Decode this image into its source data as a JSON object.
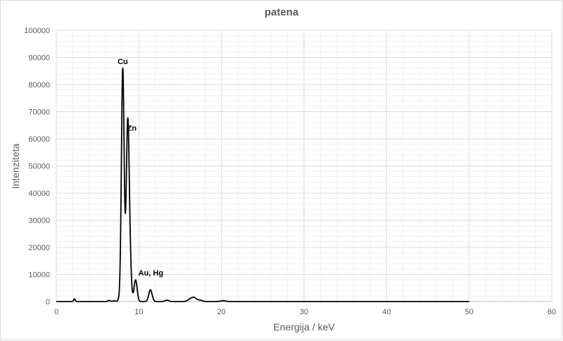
{
  "chart_data": {
    "type": "line",
    "title": "patena",
    "xlabel": "Energija / keV",
    "ylabel": "Intenziteta",
    "xlim": [
      0,
      60
    ],
    "ylim": [
      0,
      100000
    ],
    "xticks": [
      0,
      10,
      20,
      30,
      40,
      50,
      60
    ],
    "yticks": [
      0,
      10000,
      20000,
      30000,
      40000,
      50000,
      60000,
      70000,
      80000,
      90000,
      100000
    ],
    "grid": true,
    "legend": "none",
    "line_color": "#000000",
    "x_data_end": 50,
    "peaks": [
      {
        "x": 2.2,
        "y": 1000
      },
      {
        "x": 6.4,
        "y": 400
      },
      {
        "x": 7.0,
        "y": 300
      },
      {
        "x": 7.6,
        "y": 600
      },
      {
        "x": 8.05,
        "y": 86000
      },
      {
        "x": 8.64,
        "y": 62500
      },
      {
        "x": 8.9,
        "y": 14000
      },
      {
        "x": 9.6,
        "y": 8000
      },
      {
        "x": 11.4,
        "y": 4300
      },
      {
        "x": 13.4,
        "y": 500
      },
      {
        "x": 16.2,
        "y": 900
      },
      {
        "x": 16.7,
        "y": 1400
      },
      {
        "x": 17.4,
        "y": 500
      },
      {
        "x": 20.2,
        "y": 300
      }
    ],
    "annotations": [
      {
        "text": "Cu",
        "x": 8.05,
        "y": 86000
      },
      {
        "text": "Zn",
        "x": 8.64,
        "y": 62500
      },
      {
        "text": "Au, Hg",
        "x": 9.6,
        "y": 8000
      }
    ]
  }
}
